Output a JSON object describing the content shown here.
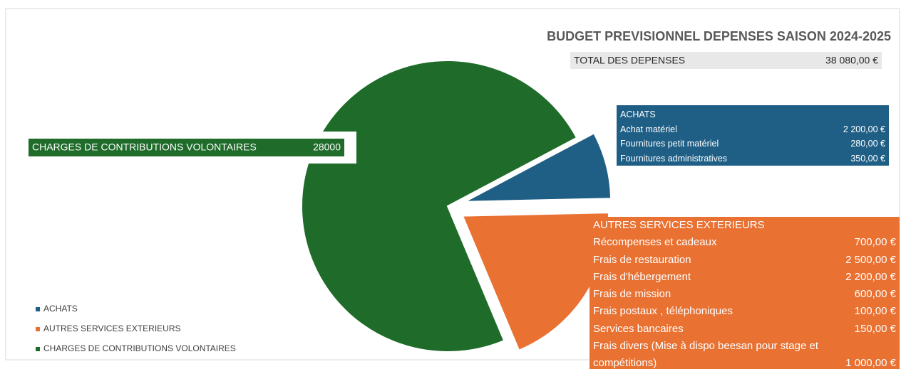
{
  "chart_data": {
    "type": "pie",
    "title": "BUDGET  PREVISIONNEL DEPENSES SAISON 2024-2025",
    "categories": [
      "ACHATS",
      "AUTRES SERVICES EXTERIEURS",
      "CHARGES DE CONTRIBUTIONS VOLONTAIRES"
    ],
    "values": [
      2830,
      7250,
      28000
    ],
    "colors": [
      "#1f5f86",
      "#e97132",
      "#1e6b2a"
    ],
    "legend": "bottom-left"
  },
  "total": {
    "label": "TOTAL DES DEPENSES",
    "value": "38 080,00 €"
  },
  "tables": [
    {
      "rows": [
        [
          "Achat matériel",
          "2 200,00 €"
        ],
        [
          "Fournitures petit matériel",
          "280,00 €"
        ],
        [
          "Fournitures administratives",
          "350,00 €"
        ]
      ]
    },
    {
      "rows": [
        [
          "Récompenses et cadeaux",
          "700,00 €"
        ],
        [
          "Frais de restauration",
          "2 500,00 €"
        ],
        [
          "Frais d'hébergement",
          "2 200,00 €"
        ],
        [
          "Frais de mission",
          "600,00 €"
        ],
        [
          "Frais postaux , téléphoniques",
          "100,00 €"
        ],
        [
          "Services bancaires",
          "150,00 €"
        ],
        [
          "Frais divers (Mise à dispo beesan pour stage et compétitions)",
          "1 000,00 €"
        ]
      ]
    }
  ]
}
